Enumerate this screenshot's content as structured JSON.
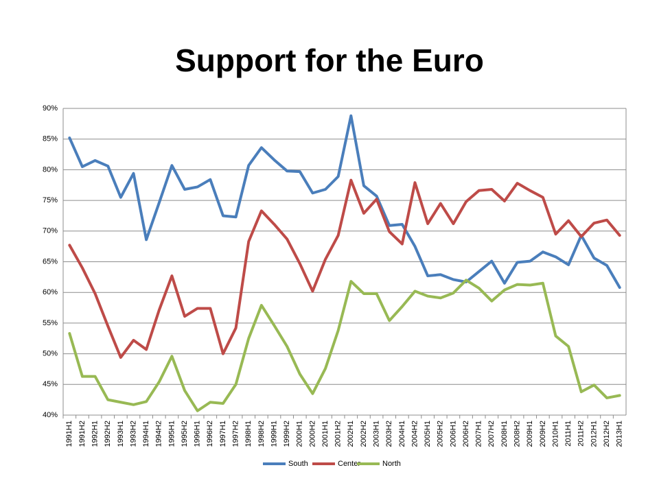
{
  "chart_data": {
    "type": "line",
    "title": "Support for the Euro",
    "categories": [
      "1991H1",
      "1991H2",
      "1992H1",
      "1992H2",
      "1993H1",
      "1993H2",
      "1994H1",
      "1994H2",
      "1995H1",
      "1995H2",
      "1996H1",
      "1996H2",
      "1997H1",
      "1997H2",
      "1998H1",
      "1998H2",
      "1999H1",
      "1999H2",
      "2000H1",
      "2000H2",
      "2001H1",
      "2001H2",
      "2002H1",
      "2002H2",
      "2003H1",
      "2003H2",
      "2004H1",
      "2004H2",
      "2005H1",
      "2005H2",
      "2006H1",
      "2006H2",
      "2007H1",
      "2007H2",
      "2008H1",
      "2008H2",
      "2009H1",
      "2009H2",
      "2010H1",
      "2011H1",
      "2011H2",
      "2012H1",
      "2012H2",
      "2013H1"
    ],
    "series": [
      {
        "name": "South",
        "color": "#4a7ebb",
        "values": [
          85.2,
          80.5,
          81.5,
          80.6,
          75.5,
          79.4,
          68.6,
          74.6,
          80.7,
          76.8,
          77.2,
          78.4,
          72.5,
          72.3,
          80.7,
          83.6,
          81.6,
          79.8,
          79.7,
          76.2,
          76.8,
          78.9,
          88.8,
          77.4,
          75.7,
          70.9,
          71.1,
          67.5,
          62.7,
          62.9,
          62.1,
          61.7,
          63.4,
          65.1,
          61.5,
          64.9,
          65.1,
          66.6,
          65.8,
          64.5,
          69.3,
          65.6,
          64.4,
          60.8
        ]
      },
      {
        "name": "Center",
        "color": "#be4b48",
        "values": [
          67.7,
          64.0,
          59.8,
          54.5,
          49.4,
          52.2,
          50.7,
          57.1,
          62.7,
          56.1,
          57.4,
          57.4,
          50.0,
          54.2,
          68.3,
          73.3,
          71.1,
          68.7,
          64.7,
          60.2,
          65.4,
          69.3,
          78.3,
          72.9,
          75.2,
          69.9,
          67.9,
          77.9,
          71.2,
          74.5,
          71.2,
          74.8,
          76.6,
          76.8,
          74.9,
          77.8,
          76.6,
          75.5,
          69.5,
          71.7,
          69.1,
          71.3,
          71.8,
          69.3
        ]
      },
      {
        "name": "North",
        "color": "#98b954",
        "values": [
          53.3,
          46.3,
          46.3,
          42.5,
          42.1,
          41.7,
          42.2,
          45.4,
          49.6,
          44.0,
          40.7,
          42.1,
          41.9,
          45.0,
          52.5,
          57.9,
          54.6,
          51.2,
          46.7,
          43.5,
          47.6,
          53.8,
          61.8,
          59.8,
          59.8,
          55.4,
          57.7,
          60.2,
          59.4,
          59.1,
          59.9,
          62.0,
          60.7,
          58.6,
          60.4,
          61.3,
          61.2,
          61.5,
          52.9,
          51.2,
          43.8,
          44.9,
          42.8,
          43.2
        ]
      }
    ],
    "ylim": [
      40,
      90
    ],
    "yticks": [
      {
        "value": 40,
        "label": "40%"
      },
      {
        "value": 45,
        "label": "45%"
      },
      {
        "value": 50,
        "label": "50%"
      },
      {
        "value": 55,
        "label": "55%"
      },
      {
        "value": 60,
        "label": "60%"
      },
      {
        "value": 65,
        "label": "65%"
      },
      {
        "value": 70,
        "label": "70%"
      },
      {
        "value": 75,
        "label": "75%"
      },
      {
        "value": 80,
        "label": "80%"
      },
      {
        "value": 85,
        "label": "85%"
      },
      {
        "value": 90,
        "label": "90%"
      }
    ],
    "grid": true,
    "legend": "bottom"
  }
}
